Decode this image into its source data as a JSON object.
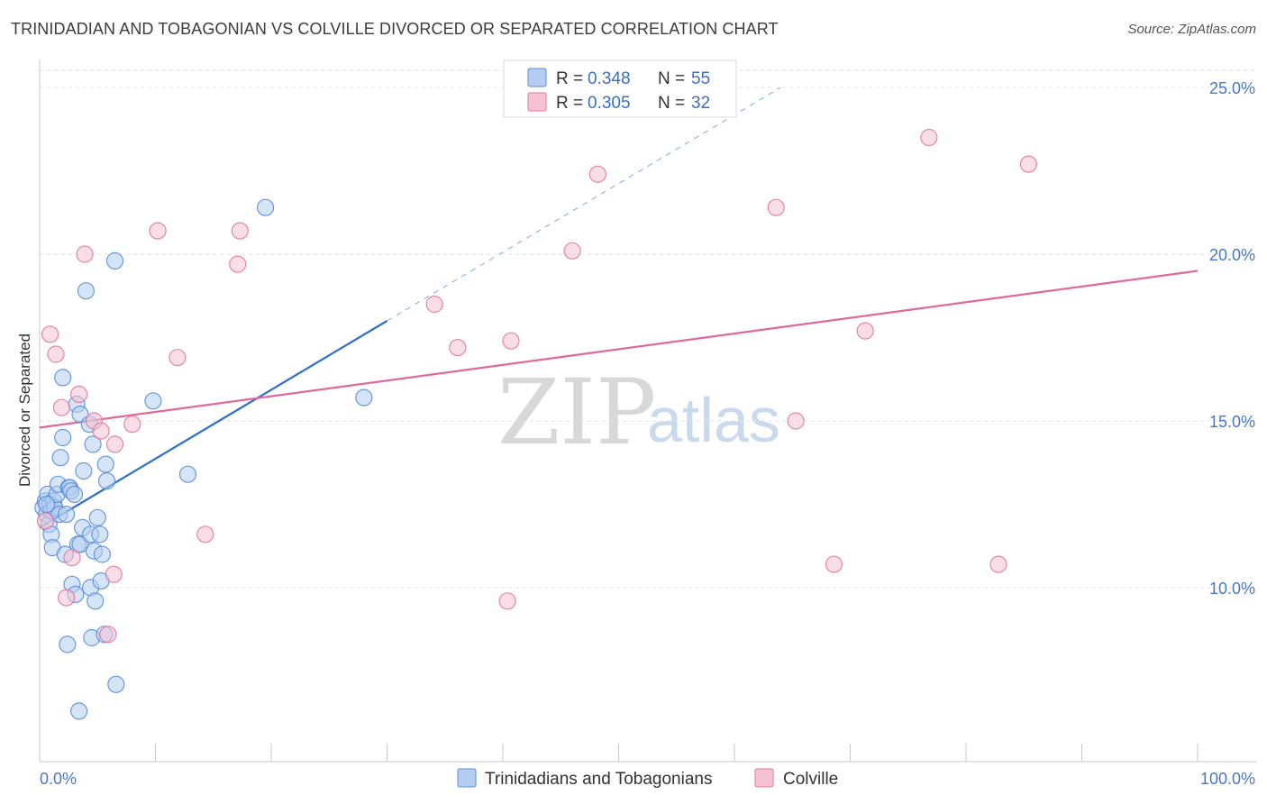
{
  "header": {
    "title": "TRINIDADIAN AND TOBAGONIAN VS COLVILLE DIVORCED OR SEPARATED CORRELATION CHART",
    "source": "Source: ZipAtlas.com"
  },
  "watermark": {
    "zip": "ZIP",
    "atlas": "atlas"
  },
  "colors": {
    "blue": "#5b8fd8",
    "blue_fill": "#b4cdf0",
    "pink": "#e07aa0",
    "pink_fill": "#f6c2d3",
    "blue_line": "#2e6fcc",
    "pink_line": "#e0699a",
    "grid": "#e3e3e3",
    "axis_label": "#4a78c2"
  },
  "legend": {
    "rows": [
      {
        "r_label": "R =",
        "r_value": "0.348",
        "n_label": "N =",
        "n_value": "55"
      },
      {
        "r_label": "R =",
        "r_value": "0.305",
        "n_label": "N =",
        "n_value": "32"
      }
    ]
  },
  "chart_data": {
    "type": "scatter",
    "title": "TRINIDADIAN AND TOBAGONIAN VS COLVILLE DIVORCED OR SEPARATED CORRELATION CHART",
    "xlabel": "",
    "ylabel": "Divorced or Separated",
    "xlim": [
      0,
      100
    ],
    "ylim": [
      5,
      25.5
    ],
    "x_tick_labels": [
      "0.0%",
      "100.0%"
    ],
    "y_ticks": [
      10,
      15,
      20,
      25
    ],
    "y_tick_labels": [
      "10.0%",
      "15.0%",
      "20.0%",
      "25.0%"
    ],
    "grid": true,
    "legend_position": "top-center",
    "series": [
      {
        "name": "Trinidadians and Tobagonians",
        "r": 0.348,
        "n": 55,
        "trend": {
          "x": [
            0,
            30
          ],
          "y": [
            11.8,
            18.0
          ],
          "dashed_extension_to": [
            64,
            25.0
          ]
        },
        "points": [
          [
            0.3,
            12.4
          ],
          [
            0.5,
            12.6
          ],
          [
            0.6,
            12.2
          ],
          [
            0.7,
            12.8
          ],
          [
            0.8,
            11.9
          ],
          [
            0.9,
            12.5
          ],
          [
            1.0,
            11.6
          ],
          [
            1.0,
            12.3
          ],
          [
            1.1,
            11.2
          ],
          [
            1.2,
            12.6
          ],
          [
            1.3,
            12.4
          ],
          [
            1.5,
            12.8
          ],
          [
            1.6,
            13.1
          ],
          [
            1.7,
            12.2
          ],
          [
            1.8,
            13.9
          ],
          [
            2.0,
            14.5
          ],
          [
            2.0,
            16.3
          ],
          [
            2.2,
            11.0
          ],
          [
            2.3,
            12.2
          ],
          [
            2.4,
            8.3
          ],
          [
            2.5,
            13.0
          ],
          [
            2.6,
            13.0
          ],
          [
            2.7,
            12.9
          ],
          [
            2.8,
            10.1
          ],
          [
            3.0,
            12.8
          ],
          [
            3.1,
            9.8
          ],
          [
            3.2,
            15.5
          ],
          [
            3.3,
            11.3
          ],
          [
            3.5,
            11.3
          ],
          [
            3.5,
            15.2
          ],
          [
            3.4,
            6.3
          ],
          [
            3.7,
            11.8
          ],
          [
            3.8,
            13.5
          ],
          [
            4.0,
            18.9
          ],
          [
            4.3,
            14.9
          ],
          [
            4.4,
            11.6
          ],
          [
            4.4,
            10.0
          ],
          [
            4.5,
            8.5
          ],
          [
            4.6,
            14.3
          ],
          [
            4.7,
            11.1
          ],
          [
            4.8,
            9.6
          ],
          [
            5.0,
            12.1
          ],
          [
            5.2,
            11.6
          ],
          [
            5.3,
            10.2
          ],
          [
            5.4,
            11.0
          ],
          [
            5.6,
            8.6
          ],
          [
            5.7,
            13.7
          ],
          [
            5.8,
            13.2
          ],
          [
            6.5,
            19.8
          ],
          [
            6.6,
            7.1
          ],
          [
            9.8,
            15.6
          ],
          [
            12.8,
            13.4
          ],
          [
            19.5,
            21.4
          ],
          [
            28.0,
            15.7
          ],
          [
            0.6,
            12.5
          ]
        ]
      },
      {
        "name": "Colville",
        "r": 0.305,
        "n": 32,
        "trend": {
          "x": [
            0,
            100
          ],
          "y": [
            14.8,
            19.5
          ]
        },
        "points": [
          [
            0.5,
            12.0
          ],
          [
            0.9,
            17.6
          ],
          [
            1.4,
            17.0
          ],
          [
            1.9,
            15.4
          ],
          [
            2.3,
            9.7
          ],
          [
            2.8,
            10.9
          ],
          [
            3.4,
            15.8
          ],
          [
            3.9,
            20.0
          ],
          [
            4.7,
            15.0
          ],
          [
            5.3,
            14.7
          ],
          [
            5.9,
            8.6
          ],
          [
            6.4,
            10.4
          ],
          [
            6.5,
            14.3
          ],
          [
            8.0,
            14.9
          ],
          [
            10.2,
            20.7
          ],
          [
            11.9,
            16.9
          ],
          [
            14.3,
            11.6
          ],
          [
            17.1,
            19.7
          ],
          [
            17.3,
            20.7
          ],
          [
            34.1,
            18.5
          ],
          [
            36.1,
            17.2
          ],
          [
            40.4,
            9.6
          ],
          [
            40.7,
            17.4
          ],
          [
            46.0,
            20.1
          ],
          [
            48.2,
            22.4
          ],
          [
            63.6,
            21.4
          ],
          [
            65.3,
            15.0
          ],
          [
            68.6,
            10.7
          ],
          [
            71.3,
            17.7
          ],
          [
            76.8,
            23.5
          ],
          [
            82.8,
            10.7
          ],
          [
            85.4,
            22.7
          ]
        ]
      }
    ]
  }
}
